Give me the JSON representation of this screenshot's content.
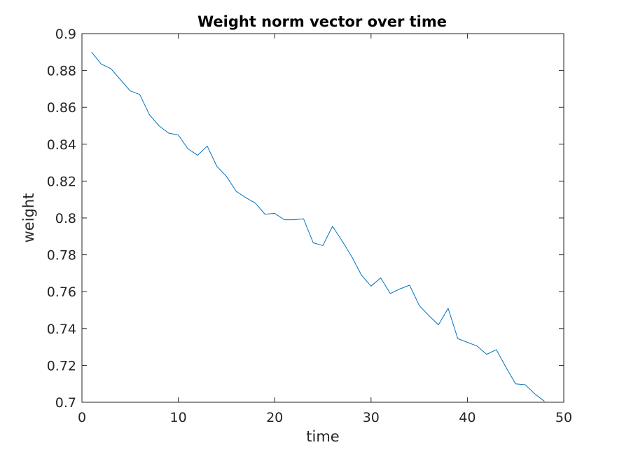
{
  "chart_data": {
    "type": "line",
    "title": "Weight norm vector over time",
    "xlabel": "time",
    "ylabel": "weight",
    "xlim": [
      0,
      50
    ],
    "ylim": [
      0.7,
      0.9
    ],
    "xticks": [
      "0",
      "10",
      "20",
      "30",
      "40",
      "50"
    ],
    "yticks": [
      "0.7",
      "0.72",
      "0.74",
      "0.76",
      "0.78",
      "0.8",
      "0.82",
      "0.84",
      "0.86",
      "0.88",
      "0.9"
    ],
    "grid": false,
    "series": [
      {
        "color": "#0072BD",
        "x": [
          1,
          2,
          3,
          4,
          5,
          6,
          7,
          8,
          9,
          10,
          11,
          12,
          13,
          14,
          15,
          16,
          17,
          18,
          19,
          20,
          21,
          22,
          23,
          24,
          25,
          26,
          27,
          28,
          29,
          30,
          31,
          32,
          33,
          34,
          35,
          36,
          37,
          38,
          39,
          40,
          41,
          42,
          43,
          44,
          45,
          46,
          47,
          48
        ],
        "y": [
          0.89,
          0.8835,
          0.881,
          0.875,
          0.869,
          0.867,
          0.856,
          0.85,
          0.846,
          0.845,
          0.8375,
          0.834,
          0.839,
          0.828,
          0.8225,
          0.8145,
          0.811,
          0.808,
          0.802,
          0.8025,
          0.799,
          0.799,
          0.7995,
          0.7865,
          0.785,
          0.7955,
          0.7875,
          0.779,
          0.769,
          0.763,
          0.7675,
          0.759,
          0.7615,
          0.7635,
          0.7525,
          0.747,
          0.742,
          0.751,
          0.7345,
          0.7325,
          0.7305,
          0.726,
          0.7285,
          0.719,
          0.71,
          0.7095,
          0.7045,
          0.7005
        ]
      }
    ]
  }
}
